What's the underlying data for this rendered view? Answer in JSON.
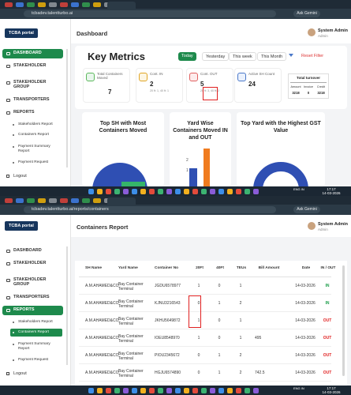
{
  "windows": [
    {
      "url": "tcbadev.talentturbo.ai",
      "ask": "Ask Gemini",
      "logo": "TCBA portal",
      "page_title": "Dashboard",
      "user": {
        "name": "System Admin",
        "role": "Admin"
      },
      "menu": [
        "DASHBOARD",
        "STAKEHOLDER",
        "STAKEHOLDER GROUP",
        "TRANSPORTERS",
        "REPORTS"
      ],
      "submenu": [
        "Stakeholders Report",
        "Containers Report",
        "Payment Summary Report",
        "Payment Request"
      ],
      "logout": "Logout",
      "metrics": {
        "title": "Key Metrics",
        "filters": [
          "Today",
          "Yesterday",
          "This week",
          "This Month"
        ],
        "reset": "Reset Filter",
        "cards": [
          {
            "label": "Total Containers Moved",
            "value": 7
          },
          {
            "label": "Cont. IN",
            "value": 2,
            "detail": "20 ft: 1, 40 ft: 1"
          },
          {
            "label": "Cont. OUT",
            "value": 5,
            "detail": "20 ft: 3, 40 ft: 2"
          },
          {
            "label": "Active SH Count",
            "value": 24
          }
        ],
        "turnover": {
          "title": "Total turnover",
          "headers": [
            "Amount",
            "Invoice",
            "Credit"
          ],
          "values": [
            3218,
            0,
            3218
          ]
        }
      },
      "charts": [
        {
          "title": "Top SH with Most Containers Moved"
        },
        {
          "title": "Yard Wise Containers Moved IN and OUT",
          "yticks": [
            2,
            1
          ]
        },
        {
          "title": "Top Yard with the Highest GST Value"
        }
      ],
      "taskbar": {
        "lang": "ENG IN",
        "time": "17:17",
        "date": "14-03-2026"
      }
    },
    {
      "url": "tcbadev.talentturbo.ai/reports/containers",
      "ask": "Ask Gemini",
      "logo": "TCBA portal",
      "page_title": "Containers Report",
      "user": {
        "name": "System Admin",
        "role": "Admin"
      },
      "menu": [
        "DASHBOARD",
        "STAKEHOLDER",
        "STAKEHOLDER GROUP",
        "TRANSPORTERS",
        "REPORTS"
      ],
      "submenu": [
        "Stakeholders Report",
        "Containers Report",
        "Payment Summary Report",
        "Payment Request"
      ],
      "logout": "Logout",
      "table": {
        "headers": [
          "SH Name",
          "Yard Name",
          "Container No",
          "20Ft",
          "40Ft",
          "TEUs",
          "Bill Amount",
          "Date",
          "IN / OUT"
        ],
        "rows": [
          [
            "A.M.AHAMED&CO",
            "Bay Container Terminal",
            "JGDU6578977",
            1,
            0,
            1,
            null,
            "14-03-2026",
            "IN"
          ],
          [
            "A.M.AHAMED&CO",
            "Bay Container Terminal",
            "KJNU3216543",
            0,
            1,
            2,
            null,
            "14-03-2026",
            "IN"
          ],
          [
            "A.M.AHAMED&CO",
            "Bay Container Terminal",
            "JKHU5649872",
            1,
            0,
            1,
            null,
            "14-03-2026",
            "OUT"
          ],
          [
            "A.M.AHAMED&CO",
            "Bay Container Terminal",
            "IOEU8548970",
            1,
            0,
            1,
            495,
            "14-03-2026",
            "OUT"
          ],
          [
            "A.M.AHAMED&CO",
            "Bay Container Terminal",
            "PIOU2345672",
            0,
            1,
            2,
            null,
            "14-03-2026",
            "OUT"
          ],
          [
            "A.M.AHAMED&CO",
            "Bay Container Terminal",
            "HGJU6574890",
            0,
            1,
            2,
            742.5,
            "14-03-2026",
            "OUT"
          ]
        ]
      },
      "taskbar": {
        "lang": "ENG IN",
        "time": "17:17",
        "date": "14-03-2026"
      }
    }
  ]
}
